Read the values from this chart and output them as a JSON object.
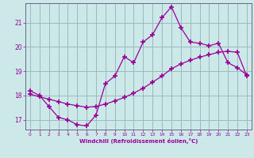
{
  "xlabel": "Windchill (Refroidissement éolien,°C)",
  "bg_color": "#cce8e8",
  "line_color": "#990099",
  "grid_color": "#99bbbb",
  "spine_color": "#666688",
  "xlim": [
    -0.5,
    23.5
  ],
  "ylim": [
    16.6,
    21.8
  ],
  "xticks": [
    0,
    1,
    2,
    3,
    4,
    5,
    6,
    7,
    8,
    9,
    10,
    11,
    12,
    13,
    14,
    15,
    16,
    17,
    18,
    19,
    20,
    21,
    22,
    23
  ],
  "yticks": [
    17,
    18,
    19,
    20,
    21
  ],
  "line1_x": [
    0,
    1,
    2,
    3,
    4,
    5,
    6,
    7,
    8,
    9,
    10,
    11,
    12,
    13,
    14,
    15,
    16,
    17,
    18,
    19,
    20,
    21,
    22,
    23
  ],
  "line1_y": [
    18.2,
    18.0,
    17.55,
    17.1,
    17.0,
    16.8,
    16.75,
    17.2,
    18.5,
    18.8,
    19.6,
    19.35,
    20.2,
    20.5,
    21.2,
    21.65,
    20.8,
    20.2,
    20.15,
    20.05,
    20.15,
    19.35,
    19.15,
    18.85
  ],
  "line2_x": [
    0,
    1,
    2,
    3,
    4,
    5,
    6,
    7,
    8,
    9,
    10,
    11,
    12,
    13,
    14,
    15,
    16,
    17,
    18,
    19,
    20,
    21,
    22,
    23
  ],
  "line2_y": [
    18.05,
    17.95,
    17.85,
    17.75,
    17.65,
    17.58,
    17.52,
    17.55,
    17.65,
    17.78,
    17.92,
    18.1,
    18.3,
    18.55,
    18.8,
    19.1,
    19.3,
    19.45,
    19.58,
    19.68,
    19.78,
    19.82,
    19.78,
    18.8
  ]
}
